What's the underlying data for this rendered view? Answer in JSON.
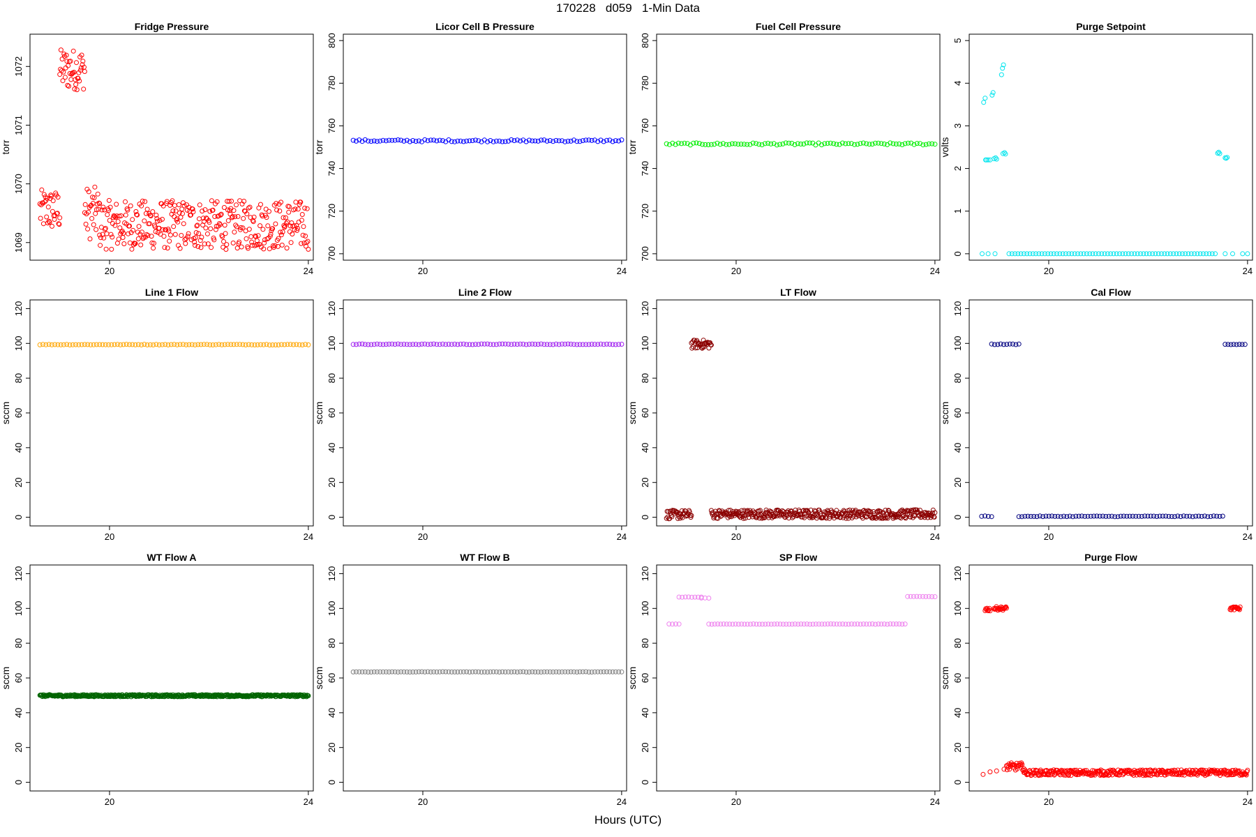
{
  "page": {
    "title": "170228   d059   1-Min Data",
    "xaxis_title": "Hours (UTC)"
  },
  "chart_data": [
    {
      "type": "scatter",
      "title": "Fridge Pressure",
      "ylabel": "torr",
      "color": "#ff0000",
      "xlim": [
        18.4,
        24.1
      ],
      "ylim": [
        1068.7,
        1072.55
      ],
      "xticks": [
        20,
        24
      ],
      "yticks": [
        1069,
        1070,
        1071,
        1072
      ],
      "pattern": {
        "kind": "noisy",
        "segments": [
          {
            "x": [
              18.6,
              19.0
            ],
            "y": 1069.55,
            "amp": 0.35
          },
          {
            "x": [
              19.0,
              19.5
            ],
            "y": 1071.95,
            "amp": 0.35
          },
          {
            "x": [
              19.5,
              19.8
            ],
            "y": 1069.5,
            "amp": 0.45
          },
          {
            "x": [
              19.8,
              24.0
            ],
            "y": 1069.3,
            "amp": 0.42
          }
        ]
      }
    },
    {
      "type": "scatter",
      "title": "Licor Cell B Pressure",
      "ylabel": "torr",
      "color": "#0000ff",
      "xlim": [
        18.4,
        24.1
      ],
      "ylim": [
        697,
        803
      ],
      "xticks": [
        20,
        24
      ],
      "yticks": [
        700,
        720,
        740,
        760,
        780,
        800
      ],
      "pattern": {
        "kind": "flat",
        "segments": [
          {
            "x": [
              18.6,
              24.0
            ],
            "y": 753,
            "amp": 0.5
          }
        ]
      }
    },
    {
      "type": "scatter",
      "title": "Fuel Cell Pressure",
      "ylabel": "torr",
      "color": "#00ee00",
      "xlim": [
        18.4,
        24.1
      ],
      "ylim": [
        697,
        803
      ],
      "xticks": [
        20,
        24
      ],
      "yticks": [
        700,
        720,
        740,
        760,
        780,
        800
      ],
      "pattern": {
        "kind": "flat",
        "segments": [
          {
            "x": [
              18.6,
              24.0
            ],
            "y": 751.5,
            "amp": 0.5
          }
        ]
      }
    },
    {
      "type": "scatter",
      "title": "Purge Setpoint",
      "ylabel": "volts",
      "color": "#00e5ee",
      "xlim": [
        18.4,
        24.1
      ],
      "ylim": [
        -0.15,
        5.15
      ],
      "xticks": [
        20,
        24
      ],
      "yticks": [
        0,
        1,
        2,
        3,
        4,
        5
      ],
      "pattern": {
        "kind": "points",
        "points": [
          [
            18.66,
            0
          ],
          [
            18.78,
            0
          ],
          [
            18.92,
            0
          ],
          [
            18.69,
            3.55
          ],
          [
            18.72,
            3.65
          ],
          [
            18.86,
            3.72
          ],
          [
            18.88,
            3.78
          ],
          [
            19.05,
            4.2
          ],
          [
            19.07,
            4.35
          ],
          [
            19.09,
            4.43
          ],
          [
            18.73,
            2.2
          ],
          [
            18.75,
            2.2
          ],
          [
            18.78,
            2.2
          ],
          [
            18.82,
            2.2
          ],
          [
            18.9,
            2.23
          ],
          [
            18.93,
            2.25
          ],
          [
            18.95,
            2.22
          ],
          [
            19.08,
            2.35
          ],
          [
            19.11,
            2.37
          ],
          [
            19.13,
            2.34
          ],
          [
            23.4,
            2.36
          ],
          [
            23.42,
            2.38
          ],
          [
            23.44,
            2.35
          ],
          [
            23.55,
            2.25
          ],
          [
            23.57,
            2.24
          ],
          [
            23.59,
            2.26
          ],
          [
            23.55,
            0
          ],
          [
            23.7,
            0
          ],
          [
            23.9,
            0
          ],
          [
            24.0,
            0
          ]
        ],
        "segments": [
          {
            "x": [
              19.2,
              23.35
            ],
            "y": 0,
            "amp": 0
          }
        ]
      }
    },
    {
      "type": "scatter",
      "title": "Line 1 Flow",
      "ylabel": "sccm",
      "color": "#ffa500",
      "xlim": [
        18.4,
        24.1
      ],
      "ylim": [
        -5,
        125
      ],
      "xticks": [
        20,
        24
      ],
      "yticks": [
        0,
        20,
        40,
        60,
        80,
        100,
        120
      ],
      "pattern": {
        "kind": "flat",
        "segments": [
          {
            "x": [
              18.6,
              24.0
            ],
            "y": 99.3,
            "amp": 0.2
          }
        ]
      }
    },
    {
      "type": "scatter",
      "title": "Line 2 Flow",
      "ylabel": "sccm",
      "color": "#a020f0",
      "xlim": [
        18.4,
        24.1
      ],
      "ylim": [
        -5,
        125
      ],
      "xticks": [
        20,
        24
      ],
      "yticks": [
        0,
        20,
        40,
        60,
        80,
        100,
        120
      ],
      "pattern": {
        "kind": "flat",
        "segments": [
          {
            "x": [
              18.6,
              24.0
            ],
            "y": 99.5,
            "amp": 0.2
          }
        ]
      }
    },
    {
      "type": "scatter",
      "title": "LT Flow",
      "ylabel": "sccm",
      "color": "#8b0000",
      "xlim": [
        18.4,
        24.1
      ],
      "ylim": [
        -5,
        125
      ],
      "xticks": [
        20,
        24
      ],
      "yticks": [
        0,
        20,
        40,
        60,
        80,
        100,
        120
      ],
      "pattern": {
        "kind": "noisy",
        "segments": [
          {
            "x": [
              18.6,
              19.1
            ],
            "y": 1.5,
            "amp": 2.5
          },
          {
            "x": [
              19.1,
              19.5
            ],
            "y": 99.5,
            "amp": 2.5
          },
          {
            "x": [
              19.5,
              24.0
            ],
            "y": 1.8,
            "amp": 2.5
          }
        ]
      }
    },
    {
      "type": "scatter",
      "title": "Cal Flow",
      "ylabel": "sccm",
      "color": "#000080",
      "xlim": [
        18.4,
        24.1
      ],
      "ylim": [
        -5,
        125
      ],
      "xticks": [
        20,
        24
      ],
      "yticks": [
        0,
        20,
        40,
        60,
        80,
        100,
        120
      ],
      "pattern": {
        "kind": "flat",
        "segments": [
          {
            "x": [
              18.65,
              18.85
            ],
            "y": 0.5,
            "amp": 0.2
          },
          {
            "x": [
              18.85,
              19.4
            ],
            "y": 99.5,
            "amp": 0.2
          },
          {
            "x": [
              19.4,
              23.5
            ],
            "y": 0.5,
            "amp": 0.2
          },
          {
            "x": [
              23.55,
              23.95
            ],
            "y": 99.5,
            "amp": 0.2
          }
        ]
      }
    },
    {
      "type": "scatter",
      "title": "WT Flow A",
      "ylabel": "sccm",
      "color": "#006400",
      "xlim": [
        18.4,
        24.1
      ],
      "ylim": [
        -5,
        125
      ],
      "xticks": [
        20,
        24
      ],
      "yticks": [
        0,
        20,
        40,
        60,
        80,
        100,
        120
      ],
      "pattern": {
        "kind": "noisy",
        "segments": [
          {
            "x": [
              18.6,
              24.0
            ],
            "y": 49.8,
            "amp": 0.6
          }
        ]
      }
    },
    {
      "type": "scatter",
      "title": "WT Flow B",
      "ylabel": "sccm",
      "color": "#808080",
      "xlim": [
        18.4,
        24.1
      ],
      "ylim": [
        -5,
        125
      ],
      "xticks": [
        20,
        24
      ],
      "yticks": [
        0,
        20,
        40,
        60,
        80,
        100,
        120
      ],
      "pattern": {
        "kind": "flat",
        "segments": [
          {
            "x": [
              18.6,
              24.0
            ],
            "y": 63.5,
            "amp": 0.1
          }
        ]
      }
    },
    {
      "type": "scatter",
      "title": "SP Flow",
      "ylabel": "sccm",
      "color": "#ee82ee",
      "xlim": [
        18.4,
        24.1
      ],
      "ylim": [
        -5,
        125
      ],
      "xticks": [
        20,
        24
      ],
      "yticks": [
        0,
        20,
        40,
        60,
        80,
        100,
        120
      ],
      "pattern": {
        "kind": "flat",
        "segments": [
          {
            "x": [
              18.65,
              18.85
            ],
            "y": 91,
            "amp": 0.1
          },
          {
            "x": [
              18.85,
              19.3
            ],
            "y": 106.5,
            "amp": 0.1
          },
          {
            "x": [
              19.3,
              19.45
            ],
            "y": 106,
            "amp": 0.1
          },
          {
            "x": [
              19.45,
              23.4
            ],
            "y": 91,
            "amp": 0.1
          },
          {
            "x": [
              23.45,
              24.0
            ],
            "y": 106.8,
            "amp": 0.1
          }
        ]
      }
    },
    {
      "type": "scatter",
      "title": "Purge Flow",
      "ylabel": "sccm",
      "color": "#ff0000",
      "xlim": [
        18.4,
        24.1
      ],
      "ylim": [
        -5,
        125
      ],
      "xticks": [
        20,
        24
      ],
      "yticks": [
        0,
        20,
        40,
        60,
        80,
        100,
        120
      ],
      "pattern": {
        "kind": "noisy",
        "points": [
          [
            18.68,
            4.5
          ],
          [
            18.82,
            6
          ],
          [
            18.95,
            6.5
          ],
          [
            19.1,
            7.5
          ]
        ],
        "segments": [
          {
            "x": [
              18.72,
              18.82
            ],
            "y": 99.5,
            "amp": 1
          },
          {
            "x": [
              18.9,
              19.15
            ],
            "y": 100,
            "amp": 1
          },
          {
            "x": [
              19.15,
              19.5
            ],
            "y": 9,
            "amp": 2.2
          },
          {
            "x": [
              19.5,
              24.0
            ],
            "y": 5.5,
            "amp": 1.6
          },
          {
            "x": [
              23.65,
              23.85
            ],
            "y": 100,
            "amp": 1
          }
        ]
      }
    }
  ]
}
